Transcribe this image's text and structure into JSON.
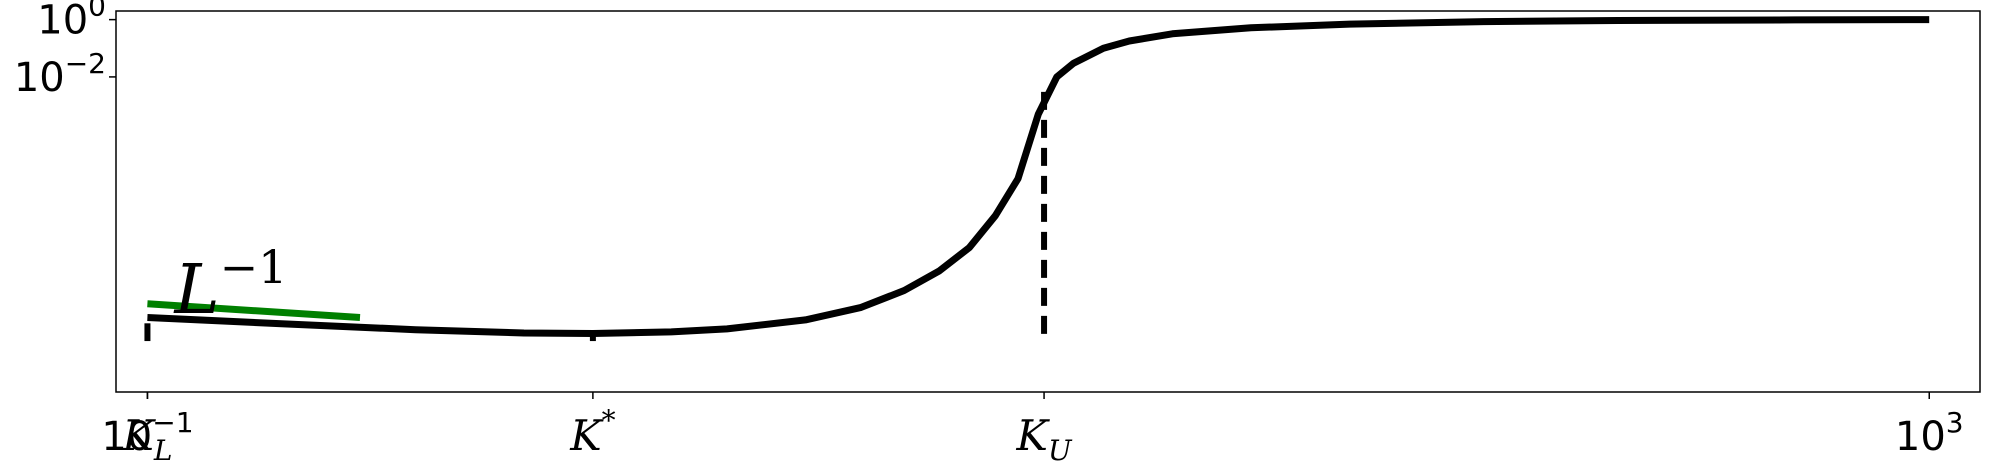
{
  "chart_data": {
    "type": "line",
    "x_scale": "log",
    "y_scale": "log",
    "xlim": [
      0.085,
      1300
    ],
    "ylim": [
      1e-13,
      2.0
    ],
    "grid": false,
    "legend": "none",
    "x_ticks": [
      {
        "value": 0.1,
        "base": "10",
        "exp": "−1"
      },
      {
        "value": 1000,
        "base": "10",
        "exp": "3"
      }
    ],
    "y_ticks": [
      {
        "value": 1,
        "base": "10",
        "exp": "0"
      },
      {
        "value": 0.01,
        "base": "10",
        "exp": "−2"
      }
    ],
    "x_markers": [
      {
        "value": 0.1,
        "main": "K",
        "sub": "L",
        "sup": ""
      },
      {
        "value": 1,
        "main": "K",
        "sub": "",
        "sup": "*"
      },
      {
        "value": 10.3,
        "main": "K",
        "sub": "U",
        "sup": ""
      }
    ],
    "series": [
      {
        "color": "#000000",
        "x": [
          0.1,
          0.2,
          0.4,
          0.7,
          1.0,
          1.5,
          2.0,
          3.0,
          4.0,
          5.0,
          6.0,
          7.0,
          8.0,
          9.0,
          10.0,
          11.0,
          12.0,
          14.0,
          16.0,
          20.0,
          30.0,
          50.0,
          100.0,
          200.0,
          500.0,
          1000.0
        ],
        "y": [
          4e-11,
          2.4e-11,
          1.5e-11,
          1.15e-11,
          1.1e-11,
          1.25e-11,
          1.6e-11,
          3.3e-11,
          9e-11,
          3.5e-10,
          1.7e-09,
          1.1e-08,
          1.4e-07,
          2.8e-06,
          0.0005,
          0.01,
          0.03,
          0.1,
          0.18,
          0.32,
          0.52,
          0.7,
          0.85,
          0.93,
          0.98,
          1.0
        ]
      },
      {
        "color": "#008000",
        "x": [
          0.1,
          0.3
        ],
        "y": [
          1.2e-10,
          4e-11
        ]
      }
    ],
    "vlines": [
      {
        "x": 0.1,
        "y_top": 2.5e-11,
        "y_bottom": 6e-12
      },
      {
        "x": 1.0,
        "y_top": 9.5e-12,
        "y_bottom": 6e-12
      },
      {
        "x": 10.3,
        "y_top": 0.003,
        "y_bottom": 6e-12
      }
    ],
    "annotations": [
      {
        "main": "L",
        "sup": "−1",
        "x": 0.115,
        "y": 1.5e-10
      }
    ]
  }
}
